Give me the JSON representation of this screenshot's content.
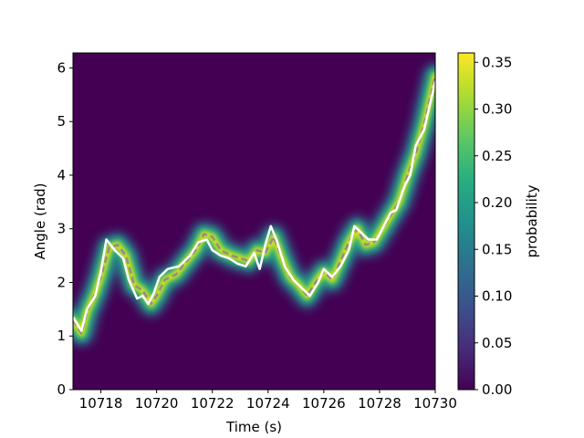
{
  "chart_data": {
    "type": "heatmap",
    "title": "",
    "xlabel": "Time (s)",
    "ylabel": "Angle (rad)",
    "xlim": [
      10717,
      10730
    ],
    "ylim": [
      0,
      6.28
    ],
    "xticks": [
      10718,
      10720,
      10722,
      10724,
      10726,
      10728,
      10730
    ],
    "yticks": [
      0,
      1,
      2,
      3,
      4,
      5,
      6
    ],
    "colorbar": {
      "label": "probability",
      "range": [
        0,
        0.36
      ],
      "ticks": [
        "0.00",
        "0.05",
        "0.10",
        "0.15",
        "0.20",
        "0.25",
        "0.30",
        "0.35"
      ],
      "colormap": "viridis"
    },
    "series": [
      {
        "style": "white-solid",
        "color": "#ffffff",
        "x": [
          10717.0,
          10717.3,
          10717.5,
          10717.8,
          10718.0,
          10718.2,
          10718.5,
          10718.8,
          10719.0,
          10719.3,
          10719.5,
          10719.7,
          10719.9,
          10720.1,
          10720.4,
          10720.8,
          10721.2,
          10721.5,
          10721.8,
          10722.0,
          10722.3,
          10722.6,
          10722.9,
          10723.2,
          10723.5,
          10723.7,
          10723.9,
          10724.1,
          10724.3,
          10724.6,
          10724.9,
          10725.2,
          10725.5,
          10725.8,
          10726.0,
          10726.3,
          10726.6,
          10726.9,
          10727.1,
          10727.4,
          10727.6,
          10727.9,
          10728.1,
          10728.4,
          10728.6,
          10728.9,
          10729.1,
          10729.3,
          10729.6,
          10729.8,
          10730.0
        ],
        "y": [
          1.35,
          1.1,
          1.5,
          1.75,
          2.2,
          2.8,
          2.6,
          2.45,
          2.05,
          1.7,
          1.75,
          1.6,
          1.8,
          2.1,
          2.25,
          2.3,
          2.5,
          2.75,
          2.8,
          2.6,
          2.5,
          2.45,
          2.35,
          2.3,
          2.55,
          2.25,
          2.7,
          3.05,
          2.8,
          2.3,
          2.05,
          1.9,
          1.75,
          2.0,
          2.25,
          2.1,
          2.3,
          2.6,
          3.05,
          2.9,
          2.8,
          2.8,
          3.0,
          3.3,
          3.35,
          3.8,
          4.0,
          4.55,
          4.85,
          5.3,
          5.75
        ]
      },
      {
        "style": "gray-dashed",
        "color": "#9a8a86",
        "x": [
          10717.0,
          10717.3,
          10717.5,
          10717.8,
          10718.0,
          10718.3,
          10718.6,
          10718.9,
          10719.2,
          10719.5,
          10719.8,
          10720.0,
          10720.3,
          10720.7,
          10721.0,
          10721.4,
          10721.7,
          10722.0,
          10722.3,
          10722.7,
          10723.0,
          10723.3,
          10723.6,
          10723.9,
          10724.2,
          10724.5,
          10724.8,
          10725.1,
          10725.4,
          10725.7,
          10726.0,
          10726.3,
          10726.6,
          10726.9,
          10727.2,
          10727.5,
          10727.8,
          10728.1,
          10728.4,
          10728.7,
          10729.0,
          10729.3,
          10729.6,
          10730.0
        ],
        "y": [
          1.3,
          1.05,
          1.45,
          1.8,
          2.1,
          2.65,
          2.7,
          2.5,
          1.95,
          1.85,
          1.6,
          1.75,
          2.05,
          2.15,
          2.35,
          2.6,
          2.9,
          2.85,
          2.6,
          2.5,
          2.45,
          2.4,
          2.6,
          2.55,
          2.85,
          2.45,
          2.1,
          1.95,
          1.75,
          2.0,
          2.2,
          2.05,
          2.4,
          2.75,
          3.0,
          2.7,
          2.75,
          3.0,
          3.25,
          3.5,
          4.0,
          4.4,
          4.95,
          5.85
        ]
      }
    ]
  }
}
